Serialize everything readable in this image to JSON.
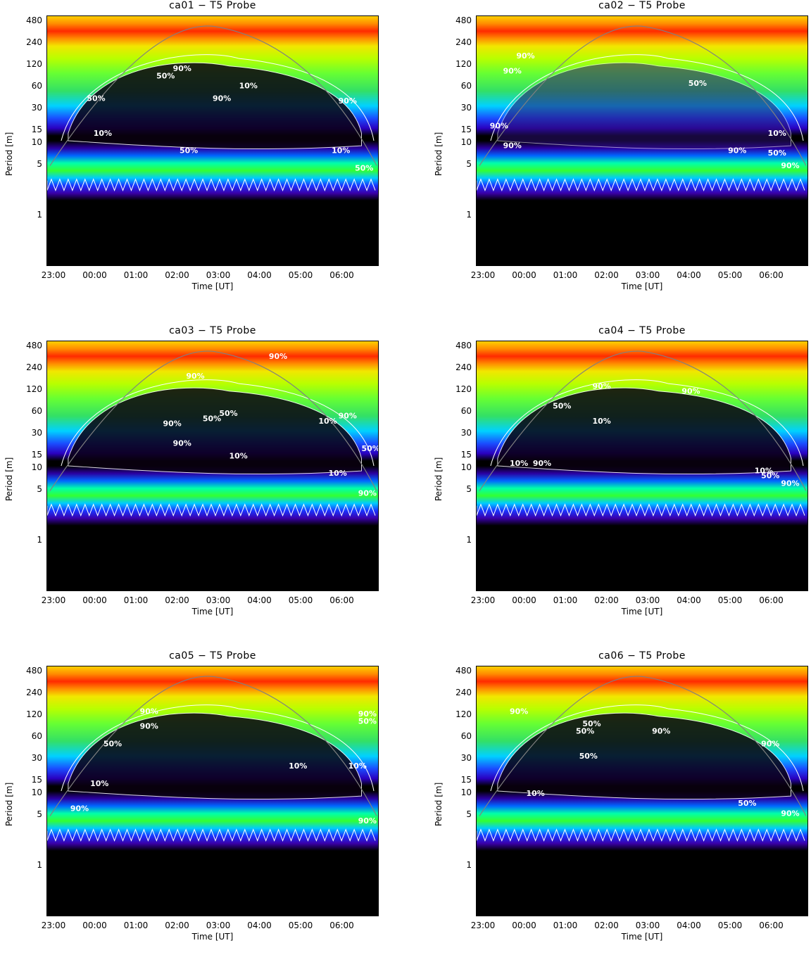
{
  "chart_data": [
    {
      "type": "heatmap",
      "title": "ca01 − T5 Probe",
      "xlabel": "Time [UT]",
      "ylabel": "Period [m]",
      "xticks": [
        "23:00",
        "00:00",
        "01:00",
        "02:00",
        "03:00",
        "04:00",
        "05:00",
        "06:00"
      ],
      "yticks": [
        "480",
        "240",
        "120",
        "60",
        "30",
        "15",
        "10",
        "5",
        "1"
      ],
      "contour_labels": [
        "90%",
        "50%",
        "10%",
        "50%",
        "90%",
        "10%",
        "90%",
        "50%",
        "10%",
        "50%"
      ]
    },
    {
      "type": "heatmap",
      "title": "ca02 − T5 Probe",
      "xlabel": "Time [UT]",
      "ylabel": "Period [m]",
      "xticks": [
        "23:00",
        "00:00",
        "01:00",
        "02:00",
        "03:00",
        "04:00",
        "05:00",
        "06:00"
      ],
      "yticks": [
        "480",
        "240",
        "120",
        "60",
        "30",
        "15",
        "10",
        "5",
        "1"
      ],
      "contour_labels": [
        "90%",
        "90%",
        "50%",
        "90%",
        "90%",
        "10%",
        "90%",
        "50%",
        "90%"
      ]
    },
    {
      "type": "heatmap",
      "title": "ca03 − T5 Probe",
      "xlabel": "Time [UT]",
      "ylabel": "Period [m]",
      "xticks": [
        "23:00",
        "00:00",
        "01:00",
        "02:00",
        "03:00",
        "04:00",
        "05:00",
        "06:00"
      ],
      "yticks": [
        "480",
        "240",
        "120",
        "60",
        "30",
        "15",
        "10",
        "5",
        "1"
      ],
      "contour_labels": [
        "90%",
        "90%",
        "50%",
        "90%",
        "50%",
        "90%",
        "10%",
        "10%",
        "90%",
        "50%",
        "10%",
        "90%"
      ]
    },
    {
      "type": "heatmap",
      "title": "ca04 − T5 Probe",
      "xlabel": "Time [UT]",
      "ylabel": "Period [m]",
      "xticks": [
        "23:00",
        "00:00",
        "01:00",
        "02:00",
        "03:00",
        "04:00",
        "05:00",
        "06:00"
      ],
      "yticks": [
        "480",
        "240",
        "120",
        "60",
        "30",
        "15",
        "10",
        "5",
        "1"
      ],
      "contour_labels": [
        "90%",
        "90%",
        "50%",
        "10%",
        "10%",
        "90%",
        "10%",
        "50%",
        "90%"
      ]
    },
    {
      "type": "heatmap",
      "title": "ca05 − T5 Probe",
      "xlabel": "Time [UT]",
      "ylabel": "Period [m]",
      "xticks": [
        "23:00",
        "00:00",
        "01:00",
        "02:00",
        "03:00",
        "04:00",
        "05:00",
        "06:00"
      ],
      "yticks": [
        "480",
        "240",
        "120",
        "60",
        "30",
        "15",
        "10",
        "5",
        "1"
      ],
      "contour_labels": [
        "90%",
        "90%",
        "50%",
        "10%",
        "90%",
        "10%",
        "90%",
        "50%",
        "10%",
        "90%"
      ]
    },
    {
      "type": "heatmap",
      "title": "ca06 − T5 Probe",
      "xlabel": "Time [UT]",
      "ylabel": "Period [m]",
      "xticks": [
        "23:00",
        "00:00",
        "01:00",
        "02:00",
        "03:00",
        "04:00",
        "05:00",
        "06:00"
      ],
      "yticks": [
        "480",
        "240",
        "120",
        "60",
        "30",
        "15",
        "10",
        "5",
        "1"
      ],
      "contour_labels": [
        "90%",
        "50%",
        "50%",
        "90%",
        "50%",
        "90%",
        "10%",
        "50%",
        "90%"
      ]
    }
  ]
}
